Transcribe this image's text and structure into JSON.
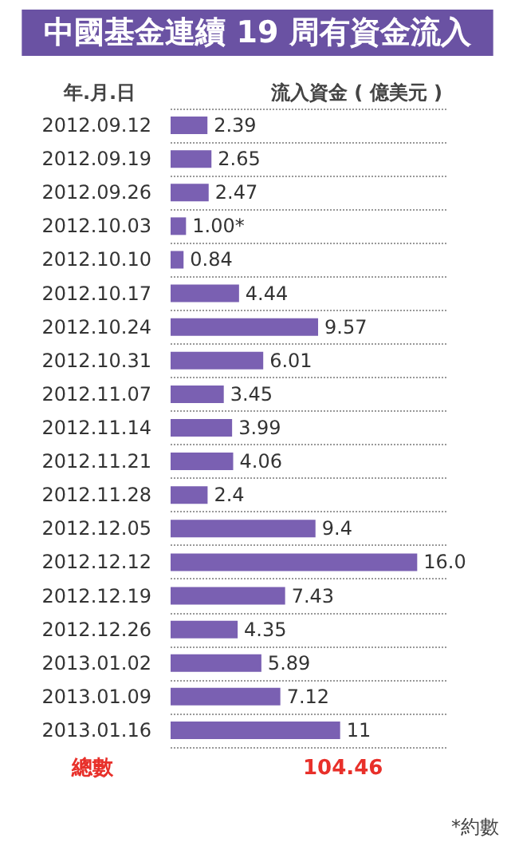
{
  "chart_data": {
    "type": "bar",
    "orientation": "horizontal",
    "title": "中國基金連續 19 周有資金流入",
    "ylabel": "年.月.日",
    "xlabel": "流入資金 ( 億美元 )",
    "categories": [
      "2012.09.12",
      "2012.09.19",
      "2012.09.26",
      "2012.10.03",
      "2012.10.10",
      "2012.10.17",
      "2012.10.24",
      "2012.10.31",
      "2012.11.07",
      "2012.11.14",
      "2012.11.21",
      "2012.11.28",
      "2012.12.05",
      "2012.12.12",
      "2012.12.19",
      "2012.12.26",
      "2013.01.02",
      "2013.01.09",
      "2013.01.16"
    ],
    "values": [
      2.39,
      2.65,
      2.47,
      1.0,
      0.84,
      4.44,
      9.57,
      6.01,
      3.45,
      3.99,
      4.06,
      2.4,
      9.4,
      16.0,
      7.43,
      4.35,
      5.89,
      7.12,
      11
    ],
    "value_labels": [
      "2.39",
      "2.65",
      "2.47",
      "1.00*",
      "0.84",
      "4.44",
      "9.57",
      "6.01",
      "3.45",
      "3.99",
      "4.06",
      "2.4",
      "9.4",
      "16.0",
      "7.43",
      "4.35",
      "5.89",
      "7.12",
      "11"
    ],
    "color": "#7a60b2",
    "grid": "y",
    "annotations": [
      "總數",
      "104.46",
      "*約數"
    ]
  }
}
